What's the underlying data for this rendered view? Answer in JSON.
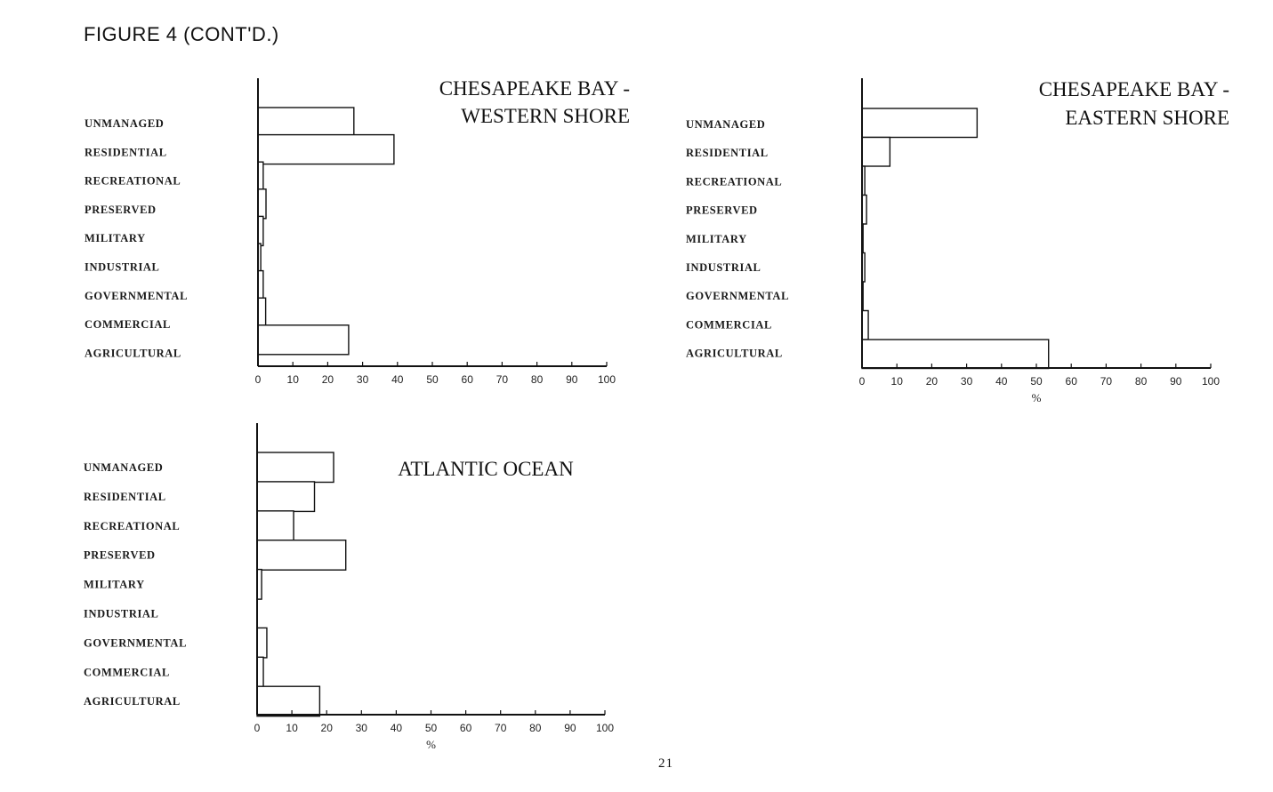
{
  "figure_title": "FIGURE 4 (CONT'D.)",
  "page_number": "21",
  "chart_data": [
    {
      "type": "bar",
      "orientation": "horizontal",
      "title": "CHESAPEAKE BAY - WESTERN SHORE",
      "title_lines": [
        "CHESAPEAKE BAY -",
        "WESTERN SHORE"
      ],
      "categories": [
        "UNMANAGED",
        "RESIDENTIAL",
        "RECREATIONAL",
        "PRESERVED",
        "MILITARY",
        "INDUSTRIAL",
        "GOVERNMENTAL",
        "COMMERCIAL",
        "AGRICULTURAL"
      ],
      "values": [
        27.5,
        39,
        1.5,
        2.3,
        1.5,
        0.8,
        1.5,
        2.2,
        26
      ],
      "xlabel": "",
      "xlim": [
        0,
        100
      ],
      "xticks": [
        "0",
        "10",
        "20",
        "30",
        "40",
        "50",
        "60",
        "70",
        "80",
        "90",
        "100"
      ],
      "grid": false
    },
    {
      "type": "bar",
      "orientation": "horizontal",
      "title": "CHESAPEAKE BAY - EASTERN SHORE",
      "title_lines": [
        "CHESAPEAKE BAY -",
        "EASTERN SHORE"
      ],
      "categories": [
        "UNMANAGED",
        "RESIDENTIAL",
        "RECREATIONAL",
        "PRESERVED",
        "MILITARY",
        "INDUSTRIAL",
        "GOVERNMENTAL",
        "COMMERCIAL",
        "AGRICULTURAL"
      ],
      "values": [
        33,
        8,
        0.8,
        1.3,
        0.3,
        0.8,
        0.3,
        1.8,
        53.5
      ],
      "xlabel": "%",
      "xlim": [
        0,
        100
      ],
      "xticks": [
        "0",
        "10",
        "20",
        "30",
        "40",
        "50",
        "60",
        "70",
        "80",
        "90",
        "100"
      ],
      "grid": false
    },
    {
      "type": "bar",
      "orientation": "horizontal",
      "title": "ATLANTIC OCEAN",
      "title_lines": [
        "ATLANTIC OCEAN"
      ],
      "categories": [
        "UNMANAGED",
        "RESIDENTIAL",
        "RECREATIONAL",
        "PRESERVED",
        "MILITARY",
        "INDUSTRIAL",
        "GOVERNMENTAL",
        "COMMERCIAL",
        "AGRICULTURAL"
      ],
      "values": [
        22,
        16.5,
        10.5,
        25.5,
        1.3,
        0,
        2.8,
        1.8,
        18
      ],
      "xlabel": "%",
      "xlim": [
        0,
        100
      ],
      "xticks": [
        "0",
        "10",
        "20",
        "30",
        "40",
        "50",
        "60",
        "70",
        "80",
        "90",
        "100"
      ],
      "grid": false
    }
  ]
}
